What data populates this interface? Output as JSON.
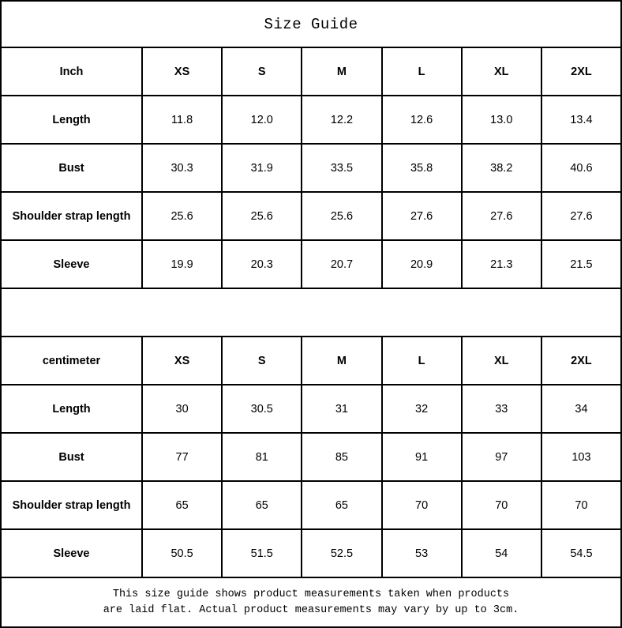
{
  "title": "Size Guide",
  "colors": {
    "border": "#000000",
    "background": "#ffffff",
    "text": "#000000"
  },
  "chart_data": [
    {
      "type": "table",
      "title": "Size Guide",
      "unit": "Inch",
      "columns": [
        "Inch",
        "XS",
        "S",
        "M",
        "L",
        "XL",
        "2XL"
      ],
      "rows": [
        {
          "label": "Length",
          "values": [
            "11.8",
            "12.0",
            "12.2",
            "12.6",
            "13.0",
            "13.4"
          ]
        },
        {
          "label": "Bust",
          "values": [
            "30.3",
            "31.9",
            "33.5",
            "35.8",
            "38.2",
            "40.6"
          ]
        },
        {
          "label": "Shoulder strap length",
          "values": [
            "25.6",
            "25.6",
            "25.6",
            "27.6",
            "27.6",
            "27.6"
          ]
        },
        {
          "label": "Sleeve",
          "values": [
            "19.9",
            "20.3",
            "20.7",
            "20.9",
            "21.3",
            "21.5"
          ]
        }
      ]
    },
    {
      "type": "table",
      "unit": "centimeter",
      "columns": [
        "centimeter",
        "XS",
        "S",
        "M",
        "L",
        "XL",
        "2XL"
      ],
      "rows": [
        {
          "label": "Length",
          "values": [
            "30",
            "30.5",
            "31",
            "32",
            "33",
            "34"
          ]
        },
        {
          "label": "Bust",
          "values": [
            "77",
            "81",
            "85",
            "91",
            "97",
            "103"
          ]
        },
        {
          "label": "Shoulder strap length",
          "values": [
            "65",
            "65",
            "65",
            "70",
            "70",
            "70"
          ]
        },
        {
          "label": "Sleeve",
          "values": [
            "50.5",
            "51.5",
            "52.5",
            "53",
            "54",
            "54.5"
          ]
        }
      ]
    }
  ],
  "footer": {
    "line1": "This size guide shows product measurements taken when products",
    "line2": "are laid flat. Actual product measurements may vary by up to 3cm."
  }
}
